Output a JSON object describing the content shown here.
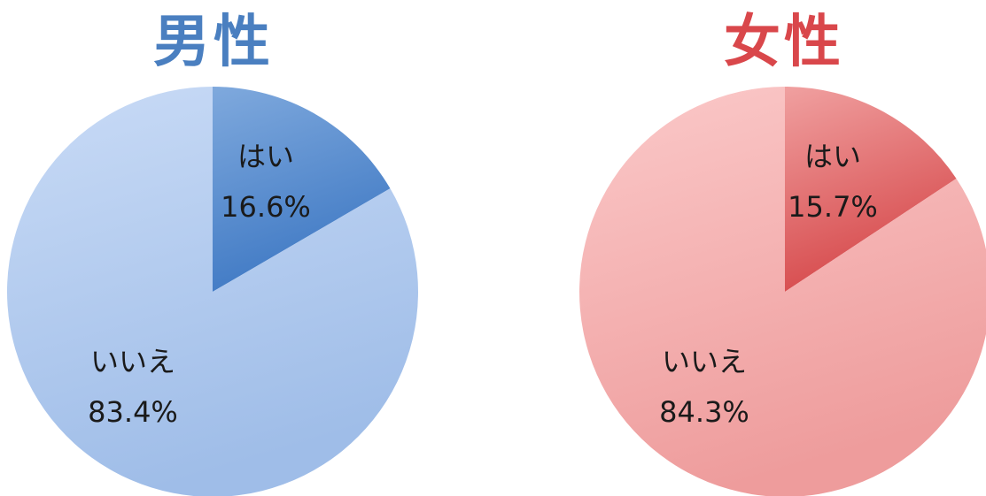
{
  "chart_data": [
    {
      "type": "pie",
      "title": "男性",
      "title_color": "#4a7fc0",
      "slices": [
        {
          "label": "はい",
          "value": 16.6,
          "value_label": "16.6%",
          "colors": [
            "#7fa9dd",
            "#3f79c4"
          ]
        },
        {
          "label": "いいえ",
          "value": 83.4,
          "value_label": "83.4%",
          "colors": [
            "#c9dbf6",
            "#9fbde8"
          ]
        }
      ]
    },
    {
      "type": "pie",
      "title": "女性",
      "title_color": "#d9474b",
      "slices": [
        {
          "label": "はい",
          "value": 15.7,
          "value_label": "15.7%",
          "colors": [
            "#f0a0a0",
            "#d6494b"
          ]
        },
        {
          "label": "いいえ",
          "value": 84.3,
          "value_label": "84.3%",
          "colors": [
            "#fbc9c9",
            "#ee9c9c"
          ]
        }
      ]
    }
  ]
}
